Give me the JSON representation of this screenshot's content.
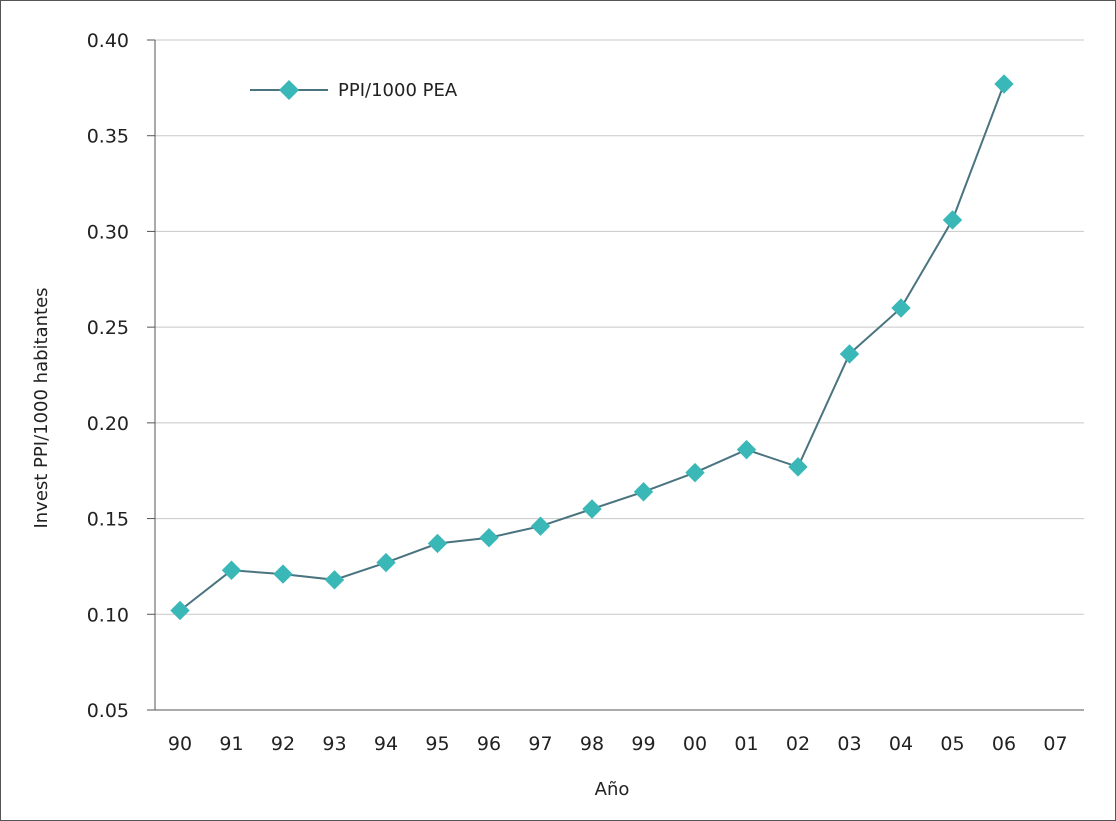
{
  "chart_data": {
    "type": "line",
    "categories": [
      "90",
      "91",
      "92",
      "93",
      "94",
      "95",
      "96",
      "97",
      "98",
      "99",
      "00",
      "01",
      "02",
      "03",
      "04",
      "05",
      "06",
      "07"
    ],
    "series": [
      {
        "name": "PPI/1000 PEA",
        "values": [
          0.102,
          0.123,
          0.121,
          0.118,
          0.127,
          0.137,
          0.14,
          0.146,
          0.155,
          0.164,
          0.174,
          0.186,
          0.177,
          0.236,
          0.26,
          0.306,
          0.377,
          null
        ],
        "color": "#3ab7b7",
        "line_color": "#4a7480",
        "marker": "diamond"
      }
    ],
    "xlabel": "Año",
    "ylabel": "Invest PPI/1000 habitantes",
    "ylim": [
      0.05,
      0.4
    ],
    "yticks": [
      "0.05",
      "0.10",
      "0.15",
      "0.20",
      "0.25",
      "0.30",
      "0.35",
      "0.40"
    ],
    "grid": "horizontal",
    "legend_position": "top-left",
    "grid_color": "#c8c8c8",
    "axis_color": "#555555"
  }
}
